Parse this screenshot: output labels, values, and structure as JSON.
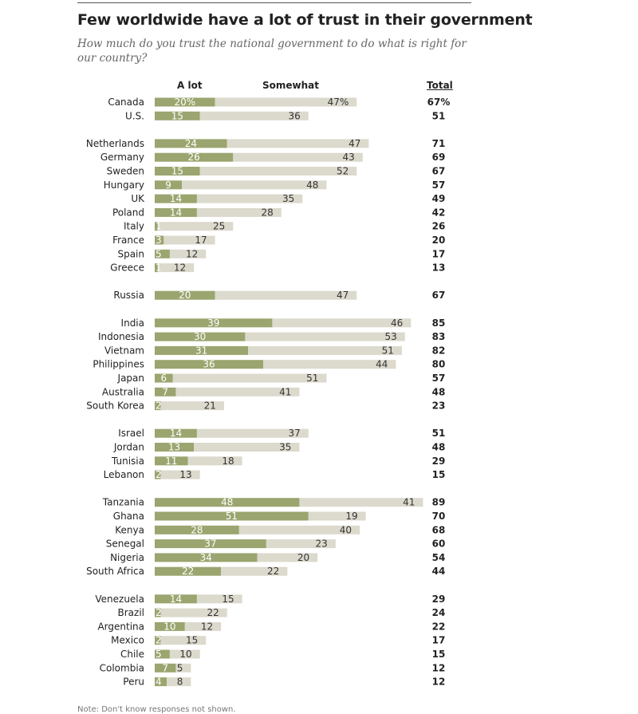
{
  "header": {
    "title": "Few worldwide have a lot of trust in their government",
    "subtitle": "How much do you trust the national government to do what is right for our country?"
  },
  "columns": {
    "a_lot": "A lot",
    "somewhat": "Somewhat",
    "total": "Total"
  },
  "colors": {
    "a_lot": "#9aa56f",
    "somewhat": "#dcd9cd"
  },
  "chart_data": {
    "type": "bar",
    "stacked": true,
    "orientation": "horizontal",
    "series": [
      {
        "name": "A lot",
        "values": [
          20,
          15,
          24,
          26,
          15,
          9,
          14,
          14,
          1,
          3,
          5,
          1,
          20,
          39,
          30,
          31,
          36,
          6,
          7,
          2,
          14,
          13,
          11,
          2,
          48,
          51,
          28,
          37,
          34,
          22,
          14,
          2,
          10,
          2,
          5,
          7,
          4
        ]
      },
      {
        "name": "Somewhat",
        "values": [
          47,
          36,
          47,
          43,
          52,
          48,
          35,
          28,
          25,
          17,
          12,
          12,
          47,
          46,
          53,
          51,
          44,
          51,
          41,
          21,
          37,
          35,
          18,
          13,
          41,
          19,
          40,
          23,
          20,
          22,
          15,
          22,
          12,
          15,
          10,
          5,
          8
        ]
      }
    ],
    "categories": [
      "Canada",
      "U.S.",
      "Netherlands",
      "Germany",
      "Sweden",
      "Hungary",
      "UK",
      "Poland",
      "Italy",
      "France",
      "Spain",
      "Greece",
      "Russia",
      "India",
      "Indonesia",
      "Vietnam",
      "Philippines",
      "Japan",
      "Australia",
      "South Korea",
      "Israel",
      "Jordan",
      "Tunisia",
      "Lebanon",
      "Tanzania",
      "Ghana",
      "Kenya",
      "Senegal",
      "Nigeria",
      "South Africa",
      "Venezuela",
      "Brazil",
      "Argentina",
      "Mexico",
      "Chile",
      "Colombia",
      "Peru"
    ],
    "groups": [
      [
        "Canada",
        "U.S."
      ],
      [
        "Netherlands",
        "Germany",
        "Sweden",
        "Hungary",
        "UK",
        "Poland",
        "Italy",
        "France",
        "Spain",
        "Greece"
      ],
      [
        "Russia"
      ],
      [
        "India",
        "Indonesia",
        "Vietnam",
        "Philippines",
        "Japan",
        "Australia",
        "South Korea"
      ],
      [
        "Israel",
        "Jordan",
        "Tunisia",
        "Lebanon"
      ],
      [
        "Tanzania",
        "Ghana",
        "Kenya",
        "Senegal",
        "Nigeria",
        "South Africa"
      ],
      [
        "Venezuela",
        "Brazil",
        "Argentina",
        "Mexico",
        "Chile",
        "Colombia",
        "Peru"
      ]
    ],
    "rows": [
      {
        "country": "Canada",
        "a_lot": 20,
        "somewhat": 47,
        "total": 67,
        "a_lot_label": "20%",
        "somewhat_label": "47%",
        "total_label": "67%"
      },
      {
        "country": "U.S.",
        "a_lot": 15,
        "somewhat": 36,
        "total": 51,
        "a_lot_label": "15",
        "somewhat_label": "36",
        "total_label": "51"
      },
      {
        "country": "Netherlands",
        "a_lot": 24,
        "somewhat": 47,
        "total": 71,
        "a_lot_label": "24",
        "somewhat_label": "47",
        "total_label": "71"
      },
      {
        "country": "Germany",
        "a_lot": 26,
        "somewhat": 43,
        "total": 69,
        "a_lot_label": "26",
        "somewhat_label": "43",
        "total_label": "69"
      },
      {
        "country": "Sweden",
        "a_lot": 15,
        "somewhat": 52,
        "total": 67,
        "a_lot_label": "15",
        "somewhat_label": "52",
        "total_label": "67"
      },
      {
        "country": "Hungary",
        "a_lot": 9,
        "somewhat": 48,
        "total": 57,
        "a_lot_label": "9",
        "somewhat_label": "48",
        "total_label": "57"
      },
      {
        "country": "UK",
        "a_lot": 14,
        "somewhat": 35,
        "total": 49,
        "a_lot_label": "14",
        "somewhat_label": "35",
        "total_label": "49"
      },
      {
        "country": "Poland",
        "a_lot": 14,
        "somewhat": 28,
        "total": 42,
        "a_lot_label": "14",
        "somewhat_label": "28",
        "total_label": "42"
      },
      {
        "country": "Italy",
        "a_lot": 1,
        "somewhat": 25,
        "total": 26,
        "a_lot_label": "1",
        "somewhat_label": "25",
        "total_label": "26"
      },
      {
        "country": "France",
        "a_lot": 3,
        "somewhat": 17,
        "total": 20,
        "a_lot_label": "3",
        "somewhat_label": "17",
        "total_label": "20"
      },
      {
        "country": "Spain",
        "a_lot": 5,
        "somewhat": 12,
        "total": 17,
        "a_lot_label": "5",
        "somewhat_label": "12",
        "total_label": "17"
      },
      {
        "country": "Greece",
        "a_lot": 1,
        "somewhat": 12,
        "total": 13,
        "a_lot_label": "1",
        "somewhat_label": "12",
        "total_label": "13"
      },
      {
        "country": "Russia",
        "a_lot": 20,
        "somewhat": 47,
        "total": 67,
        "a_lot_label": "20",
        "somewhat_label": "47",
        "total_label": "67"
      },
      {
        "country": "India",
        "a_lot": 39,
        "somewhat": 46,
        "total": 85,
        "a_lot_label": "39",
        "somewhat_label": "46",
        "total_label": "85"
      },
      {
        "country": "Indonesia",
        "a_lot": 30,
        "somewhat": 53,
        "total": 83,
        "a_lot_label": "30",
        "somewhat_label": "53",
        "total_label": "83"
      },
      {
        "country": "Vietnam",
        "a_lot": 31,
        "somewhat": 51,
        "total": 82,
        "a_lot_label": "31",
        "somewhat_label": "51",
        "total_label": "82"
      },
      {
        "country": "Philippines",
        "a_lot": 36,
        "somewhat": 44,
        "total": 80,
        "a_lot_label": "36",
        "somewhat_label": "44",
        "total_label": "80"
      },
      {
        "country": "Japan",
        "a_lot": 6,
        "somewhat": 51,
        "total": 57,
        "a_lot_label": "6",
        "somewhat_label": "51",
        "total_label": "57"
      },
      {
        "country": "Australia",
        "a_lot": 7,
        "somewhat": 41,
        "total": 48,
        "a_lot_label": "7",
        "somewhat_label": "41",
        "total_label": "48"
      },
      {
        "country": "South Korea",
        "a_lot": 2,
        "somewhat": 21,
        "total": 23,
        "a_lot_label": "2",
        "somewhat_label": "21",
        "total_label": "23"
      },
      {
        "country": "Israel",
        "a_lot": 14,
        "somewhat": 37,
        "total": 51,
        "a_lot_label": "14",
        "somewhat_label": "37",
        "total_label": "51"
      },
      {
        "country": "Jordan",
        "a_lot": 13,
        "somewhat": 35,
        "total": 48,
        "a_lot_label": "13",
        "somewhat_label": "35",
        "total_label": "48"
      },
      {
        "country": "Tunisia",
        "a_lot": 11,
        "somewhat": 18,
        "total": 29,
        "a_lot_label": "11",
        "somewhat_label": "18",
        "total_label": "29"
      },
      {
        "country": "Lebanon",
        "a_lot": 2,
        "somewhat": 13,
        "total": 15,
        "a_lot_label": "2",
        "somewhat_label": "13",
        "total_label": "15"
      },
      {
        "country": "Tanzania",
        "a_lot": 48,
        "somewhat": 41,
        "total": 89,
        "a_lot_label": "48",
        "somewhat_label": "41",
        "total_label": "89"
      },
      {
        "country": "Ghana",
        "a_lot": 51,
        "somewhat": 19,
        "total": 70,
        "a_lot_label": "51",
        "somewhat_label": "19",
        "total_label": "70"
      },
      {
        "country": "Kenya",
        "a_lot": 28,
        "somewhat": 40,
        "total": 68,
        "a_lot_label": "28",
        "somewhat_label": "40",
        "total_label": "68"
      },
      {
        "country": "Senegal",
        "a_lot": 37,
        "somewhat": 23,
        "total": 60,
        "a_lot_label": "37",
        "somewhat_label": "23",
        "total_label": "60"
      },
      {
        "country": "Nigeria",
        "a_lot": 34,
        "somewhat": 20,
        "total": 54,
        "a_lot_label": "34",
        "somewhat_label": "20",
        "total_label": "54"
      },
      {
        "country": "South Africa",
        "a_lot": 22,
        "somewhat": 22,
        "total": 44,
        "a_lot_label": "22",
        "somewhat_label": "22",
        "total_label": "44"
      },
      {
        "country": "Venezuela",
        "a_lot": 14,
        "somewhat": 15,
        "total": 29,
        "a_lot_label": "14",
        "somewhat_label": "15",
        "total_label": "29"
      },
      {
        "country": "Brazil",
        "a_lot": 2,
        "somewhat": 22,
        "total": 24,
        "a_lot_label": "2",
        "somewhat_label": "22",
        "total_label": "24"
      },
      {
        "country": "Argentina",
        "a_lot": 10,
        "somewhat": 12,
        "total": 22,
        "a_lot_label": "10",
        "somewhat_label": "12",
        "total_label": "22"
      },
      {
        "country": "Mexico",
        "a_lot": 2,
        "somewhat": 15,
        "total": 17,
        "a_lot_label": "2",
        "somewhat_label": "15",
        "total_label": "17"
      },
      {
        "country": "Chile",
        "a_lot": 5,
        "somewhat": 10,
        "total": 15,
        "a_lot_label": "5",
        "somewhat_label": "10",
        "total_label": "15"
      },
      {
        "country": "Colombia",
        "a_lot": 7,
        "somewhat": 5,
        "total": 12,
        "a_lot_label": "7",
        "somewhat_label": "5",
        "total_label": "12"
      },
      {
        "country": "Peru",
        "a_lot": 4,
        "somewhat": 8,
        "total": 12,
        "a_lot_label": "4",
        "somewhat_label": "8",
        "total_label": "12"
      }
    ]
  },
  "footer": {
    "note": "Note: Don't know responses not shown."
  }
}
